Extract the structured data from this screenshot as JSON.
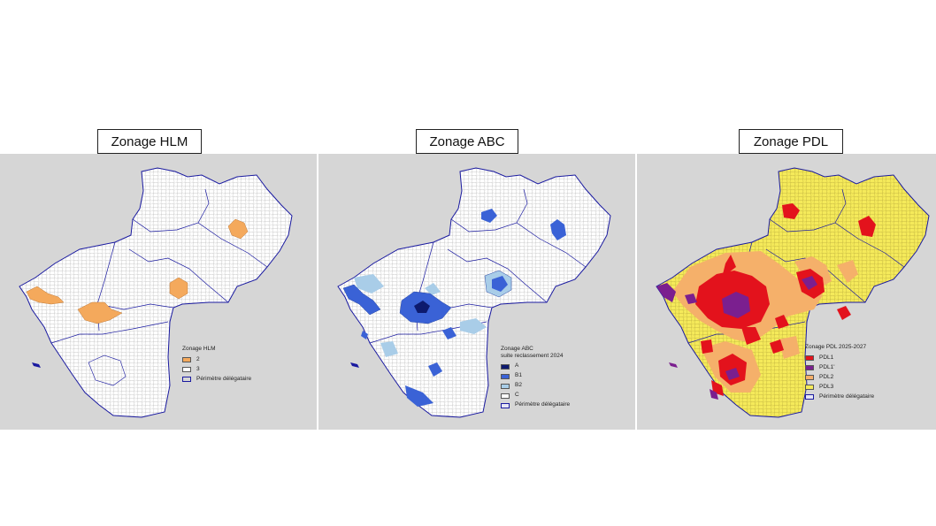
{
  "panels": {
    "hlm": {
      "title": "Zonage HLM",
      "legend": {
        "title": "Zonage HLM",
        "items": [
          {
            "label": "2",
            "color": "#f4a95c"
          },
          {
            "label": "3",
            "color": "#ffffff"
          }
        ],
        "perimeter": "Périmètre délégataire"
      }
    },
    "abc": {
      "title": "Zonage ABC",
      "legend": {
        "title": "Zonage ABC",
        "subtitle": "suite reclassement 2024",
        "items": [
          {
            "label": "A",
            "color": "#0d1a6e"
          },
          {
            "label": "B1",
            "color": "#3a62d6"
          },
          {
            "label": "B2",
            "color": "#a9cde8"
          },
          {
            "label": "C",
            "color": "#ffffff"
          }
        ],
        "perimeter": "Périmètre délégataire"
      }
    },
    "pdl": {
      "title": "Zonage PDL",
      "legend": {
        "title": "Zonage PDL 2025-2027",
        "items": [
          {
            "label": "PDL1",
            "color": "#e3121c"
          },
          {
            "label": "PDL1'",
            "color": "#7b1f8f"
          },
          {
            "label": "PDL2",
            "color": "#f5b06a"
          },
          {
            "label": "PDL3",
            "color": "#f5ea5a"
          }
        ],
        "perimeter": "Périmètre délégataire"
      }
    }
  },
  "colors": {
    "background": "#d6d6d6",
    "delegataire_border": "#1a1aa0",
    "commune_border": "#9a9a9a"
  }
}
